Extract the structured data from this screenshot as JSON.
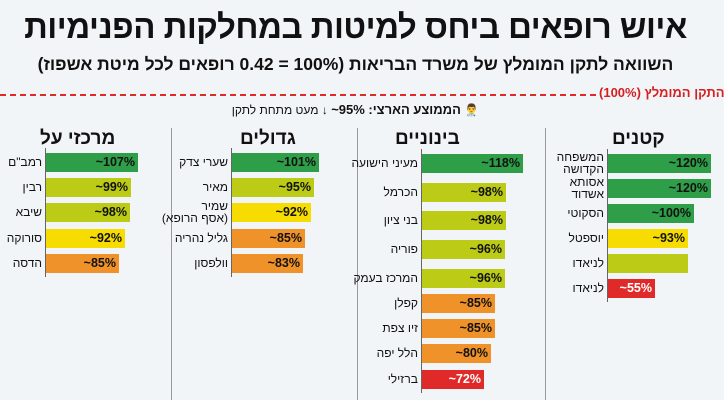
{
  "header": {
    "title": "איוש רופאים ביחס למיטות במחלקות הפנימיות",
    "subtitle": "השוואה לתקן המומלץ של משרד הבריאות (100% = 0.42 רופאים לכל מיטת אשפוז)",
    "reference_label": "התקן המומלץ (100%)",
    "average_icon": "doctor-icon",
    "average_label": "הממוצע הארצי: 95%~",
    "average_note": "↓ מעט מתחת לתקן"
  },
  "colors": {
    "dark_green": "#2e9e48",
    "yellow_green": "#bccb16",
    "yellow": "#f6dc00",
    "orange": "#f0922a",
    "red": "#e02a2a",
    "reference_line": "#e02a2a"
  },
  "chart_data": {
    "type": "bar",
    "orientation": "horizontal",
    "reference_line": {
      "value": 100,
      "label": "התקן המומלץ (100%)"
    },
    "national_average": 95,
    "groups": [
      {
        "title": "מרכזי על",
        "categories": [
          "רמב\"ם",
          "רבין",
          "שיבא",
          "סורוקה",
          "הדסה"
        ],
        "values": [
          107,
          99,
          98,
          92,
          85
        ],
        "labels": [
          "~107%",
          "~99%",
          "~98%",
          "~92%",
          "~85%"
        ],
        "colors": [
          "dark_green",
          "yellow_green",
          "yellow_green",
          "yellow",
          "orange"
        ]
      },
      {
        "title": "גדולים",
        "categories": [
          "שערי צדק",
          "מאיר",
          "שמיר\n(אסף הרופא)",
          "גליל נהריה",
          "וולפסון"
        ],
        "values": [
          101,
          95,
          92,
          85,
          83
        ],
        "labels": [
          "~101%",
          "~95%",
          "~92%",
          "~85%",
          "~83%"
        ],
        "colors": [
          "dark_green",
          "yellow_green",
          "yellow",
          "orange",
          "orange"
        ]
      },
      {
        "title": "בינוניים",
        "categories": [
          "מעיני הישועה",
          "הכרמל",
          "בני ציון",
          "פוריה",
          "המרכז בעמק",
          "קפלן",
          "זיו צפת",
          "הלל יפה",
          "ברזילי"
        ],
        "values": [
          118,
          98,
          98,
          96,
          96,
          85,
          85,
          80,
          72
        ],
        "labels": [
          "~118%",
          "~98%",
          "~98%",
          "~96%",
          "~96%",
          "~85%",
          "~85%",
          "~80%",
          "~72%"
        ],
        "colors": [
          "dark_green",
          "yellow_green",
          "yellow_green",
          "yellow_green",
          "yellow_green",
          "orange",
          "orange",
          "orange",
          "red"
        ]
      },
      {
        "title": "קטנים",
        "categories": [
          "המשפחה\nהקדושה",
          "אסותא\nאשדוד",
          "הסקוטי",
          "יוספטל",
          "לניאדו",
          "לניאדו"
        ],
        "values": [
          120,
          120,
          100,
          93,
          93,
          55
        ],
        "labels": [
          "~120%",
          "~120%",
          "~100%",
          "~93%",
          "",
          "~55%"
        ],
        "colors": [
          "dark_green",
          "dark_green",
          "dark_green",
          "yellow",
          "yellow_green",
          "red"
        ]
      }
    ]
  }
}
